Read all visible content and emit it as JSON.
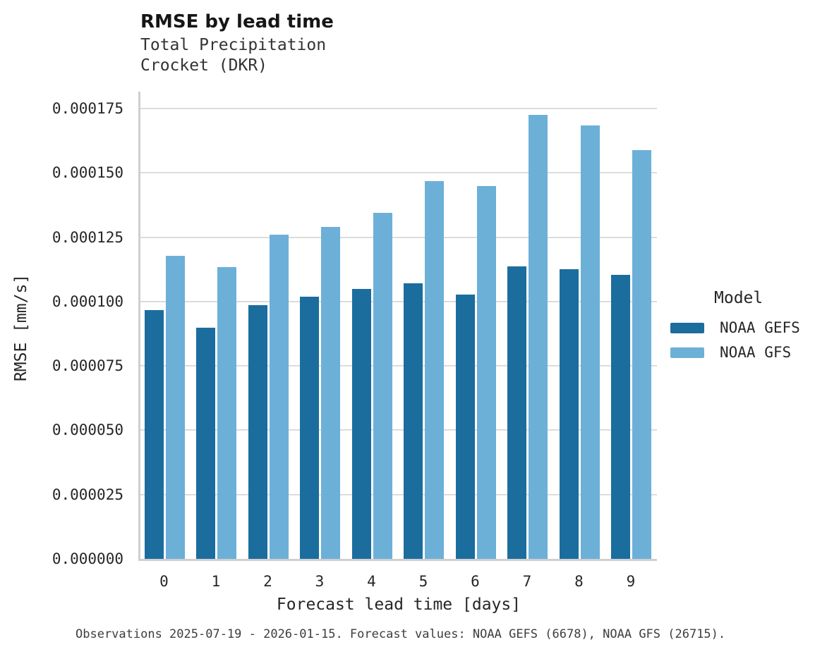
{
  "chart_data": {
    "type": "bar",
    "title": "RMSE by lead time",
    "subtitle_line1": "Total Precipitation",
    "subtitle_line2": "Crocket (DKR)",
    "xlabel": "Forecast lead time [days]",
    "ylabel": "RMSE [mm/s]",
    "legend_title": "Model",
    "legend_position": "right",
    "grid": true,
    "categories": [
      "0",
      "1",
      "2",
      "3",
      "4",
      "5",
      "6",
      "7",
      "8",
      "9"
    ],
    "yticks": [
      "0.000000",
      "0.000025",
      "0.000050",
      "0.000075",
      "0.000100",
      "0.000125",
      "0.000150",
      "0.000175"
    ],
    "ylim": [
      0,
      0.000175
    ],
    "series": [
      {
        "name": "NOAA GEFS",
        "color": "#1b6d9e",
        "values": [
          9.66e-05,
          8.98e-05,
          9.85e-05,
          0.0001019,
          0.0001049,
          0.000107,
          0.0001026,
          0.0001136,
          0.0001125,
          0.0001105
        ]
      },
      {
        "name": "NOAA GFS",
        "color": "#6cb0d8",
        "values": [
          0.0001178,
          0.0001135,
          0.0001261,
          0.000129,
          0.0001345,
          0.0001467,
          0.000145,
          0.0001725,
          0.0001683,
          0.0001589
        ]
      }
    ],
    "caption": "Observations 2025-07-19 - 2026-01-15. Forecast values: NOAA GEFS (6678), NOAA GFS (26715).",
    "colors": {
      "gridline": "#dcdcdc",
      "axis_spine": "#cfcfcf",
      "title_text": "#161616",
      "tick_text": "#262626",
      "caption_text": "#3d3d3d"
    }
  }
}
